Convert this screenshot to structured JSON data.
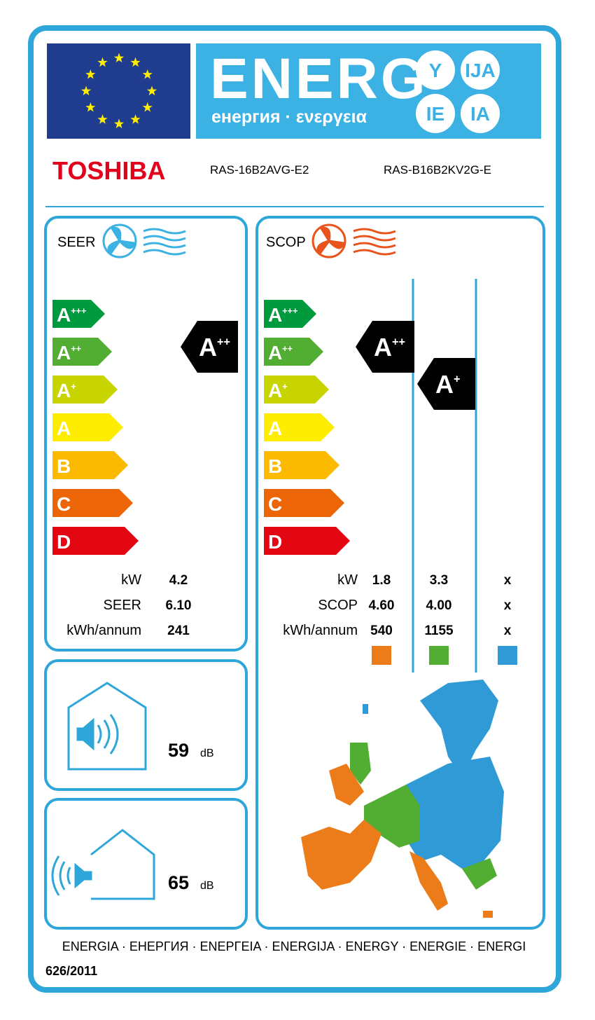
{
  "header": {
    "word": "ENERG",
    "subtitle": "енергия · ενεργεια",
    "suffixes": [
      "Y",
      "IJA",
      "IE",
      "IA"
    ]
  },
  "supplier": "TOSHIBA",
  "models": [
    "RAS-16B2AVG-E2",
    "RAS-B16B2KV2G-E"
  ],
  "classes": [
    {
      "letter": "A",
      "sup": "+++",
      "color": "#009a3e"
    },
    {
      "letter": "A",
      "sup": "++",
      "color": "#52ae32"
    },
    {
      "letter": "A",
      "sup": "+",
      "color": "#c8d400"
    },
    {
      "letter": "A",
      "sup": null,
      "color": "#ffed00"
    },
    {
      "letter": "B",
      "sup": null,
      "color": "#fbba00"
    },
    {
      "letter": "C",
      "sup": null,
      "color": "#ec6608"
    },
    {
      "letter": "D",
      "sup": null,
      "color": "#e30613"
    }
  ],
  "seer": {
    "label": "SEER",
    "rating": {
      "letter": "A",
      "sup": "++"
    },
    "rows": [
      {
        "label": "kW",
        "value": "4.2"
      },
      {
        "label": "SEER",
        "value": "6.10"
      },
      {
        "label": "kWh/annum",
        "value": "241"
      }
    ]
  },
  "scop": {
    "label": "SCOP",
    "ratings": [
      {
        "letter": "A",
        "sup": "++"
      },
      {
        "letter": "A",
        "sup": "+"
      }
    ],
    "rows": [
      {
        "label": "kW",
        "values": [
          "1.8",
          "3.3",
          "x"
        ]
      },
      {
        "label": "SCOP",
        "values": [
          "4.60",
          "4.00",
          "x"
        ]
      },
      {
        "label": "kWh/annum",
        "values": [
          "540",
          "1155",
          "x"
        ]
      }
    ],
    "zone_colors": [
      "#ec7c1a",
      "#52ae32",
      "#2f9ad6"
    ]
  },
  "noise": [
    {
      "value": "59",
      "unit": "dB"
    },
    {
      "value": "65",
      "unit": "dB"
    }
  ],
  "footer": {
    "languages": "ENERGIA · ЕНЕРГИЯ · ΕΝΕΡΓΕΙΑ · ENERGIJA · ENERGY · ENERGIE · ENERGI",
    "regulation": "626/2011"
  }
}
